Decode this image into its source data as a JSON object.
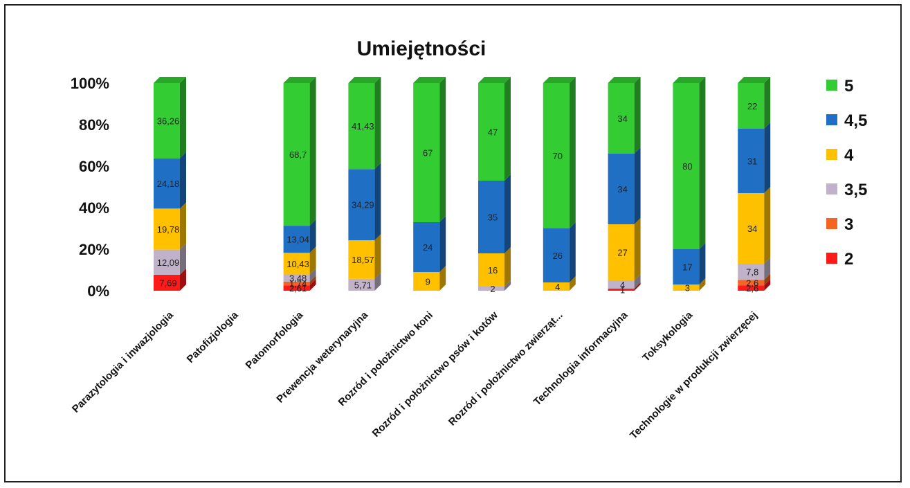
{
  "chart_data": {
    "type": "bar",
    "stacked": "percent",
    "title": "Umiejętności",
    "xlabel": "",
    "ylabel": "",
    "ylim": [
      0,
      100
    ],
    "y_ticks": [
      "0%",
      "20%",
      "40%",
      "60%",
      "80%",
      "100%"
    ],
    "y_tick_values": [
      0,
      20,
      40,
      60,
      80,
      100
    ],
    "grid": false,
    "legend_position": "right",
    "categories": [
      "Parazytologia i inwazjologia",
      "Patofizjologia",
      "Patomorfologia",
      "Prewencja weterynaryjna",
      "Rozród i położnictwo koni",
      "Rozród i położnictwo psów i kotów",
      "Rozród i położnictwo zwierząt...",
      "Technologia informacyjna",
      "Toksykologia",
      "Technologie w produkcji zwierzęcej"
    ],
    "series": [
      {
        "name": "2",
        "color": "#ff1a1a",
        "values": [
          7.69,
          null,
          2.61,
          null,
          null,
          null,
          null,
          1,
          null,
          2.6
        ],
        "labels": [
          "7,69",
          "",
          "2,61",
          "",
          "",
          "",
          "",
          "1",
          "",
          "2,6"
        ]
      },
      {
        "name": "3",
        "color": "#f26522",
        "values": [
          null,
          null,
          1.74,
          null,
          null,
          null,
          null,
          null,
          null,
          2.6
        ],
        "labels": [
          "",
          "",
          "1,74",
          "",
          "",
          "",
          "",
          "",
          "",
          "2,6"
        ]
      },
      {
        "name": "3,5",
        "color": "#c0b2c8",
        "values": [
          12.09,
          null,
          3.48,
          5.71,
          null,
          2,
          null,
          4,
          null,
          7.8
        ],
        "labels": [
          "12,09",
          "",
          "3,48",
          "5,71",
          "",
          "2",
          "",
          "4",
          "",
          "7,8"
        ]
      },
      {
        "name": "4",
        "color": "#ffc000",
        "values": [
          19.78,
          null,
          10.43,
          18.57,
          9,
          16,
          4,
          27,
          3,
          34
        ],
        "labels": [
          "19,78",
          "",
          "10,43",
          "18,57",
          "9",
          "16",
          "4",
          "27",
          "3",
          "34"
        ]
      },
      {
        "name": "4,5",
        "color": "#1f6fc5",
        "values": [
          24.18,
          null,
          13.04,
          34.29,
          24,
          35,
          26,
          34,
          17,
          31
        ],
        "labels": [
          "24,18",
          "",
          "13,04",
          "34,29",
          "24",
          "35",
          "26",
          "34",
          "17",
          "31"
        ]
      },
      {
        "name": "5",
        "color": "#33cc33",
        "values": [
          36.26,
          null,
          68.7,
          41.43,
          67,
          47,
          70,
          34,
          80,
          22
        ],
        "labels": [
          "36,26",
          "",
          "68,7",
          "41,43",
          "67",
          "47",
          "70",
          "34",
          "80",
          "22"
        ]
      }
    ]
  },
  "legend_order": [
    "5",
    "4,5",
    "4",
    "3,5",
    "3",
    "2"
  ]
}
